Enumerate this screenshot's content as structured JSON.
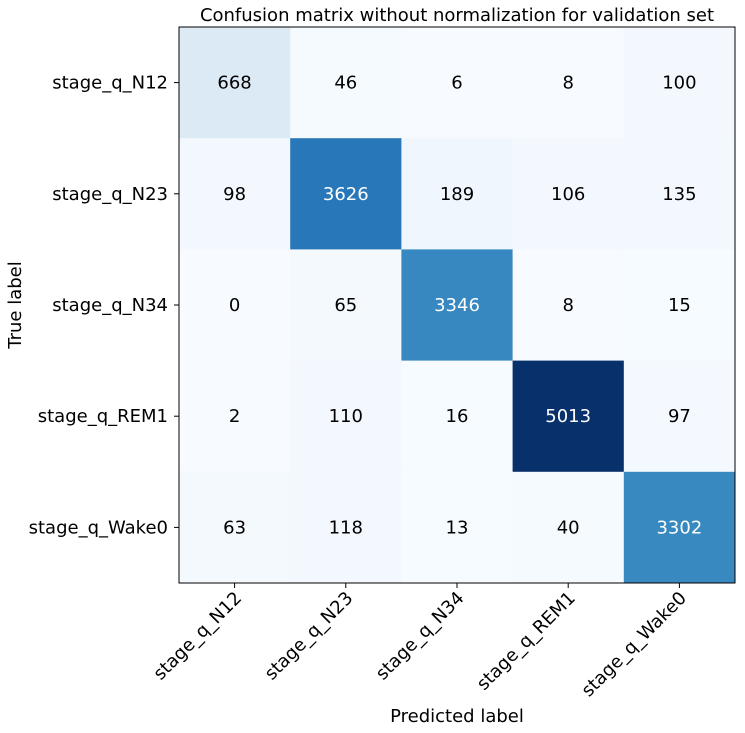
{
  "chart_data": {
    "type": "heatmap",
    "title": "Confusion matrix without normalization for validation set",
    "xlabel": "Predicted label",
    "ylabel": "True label",
    "x_categories": [
      "stage_q_N12",
      "stage_q_N23",
      "stage_q_N34",
      "stage_q_REM1",
      "stage_q_Wake0"
    ],
    "y_categories": [
      "stage_q_N12",
      "stage_q_N23",
      "stage_q_N34",
      "stage_q_REM1",
      "stage_q_Wake0"
    ],
    "values": [
      [
        668,
        46,
        6,
        8,
        100
      ],
      [
        98,
        3626,
        189,
        106,
        135
      ],
      [
        0,
        65,
        3346,
        8,
        15
      ],
      [
        2,
        110,
        16,
        5013,
        97
      ],
      [
        63,
        118,
        13,
        40,
        3302
      ]
    ],
    "colormap": "Blues",
    "vmin": 0,
    "vmax": 5013,
    "colors": {
      "scale": [
        "#f7fbff",
        "#deebf7",
        "#c6dbef",
        "#9ecae1",
        "#6baed6",
        "#4292c6",
        "#2171b5",
        "#08519c",
        "#08306b"
      ],
      "text_dark": "#000000",
      "text_light": "#ffffff"
    }
  }
}
